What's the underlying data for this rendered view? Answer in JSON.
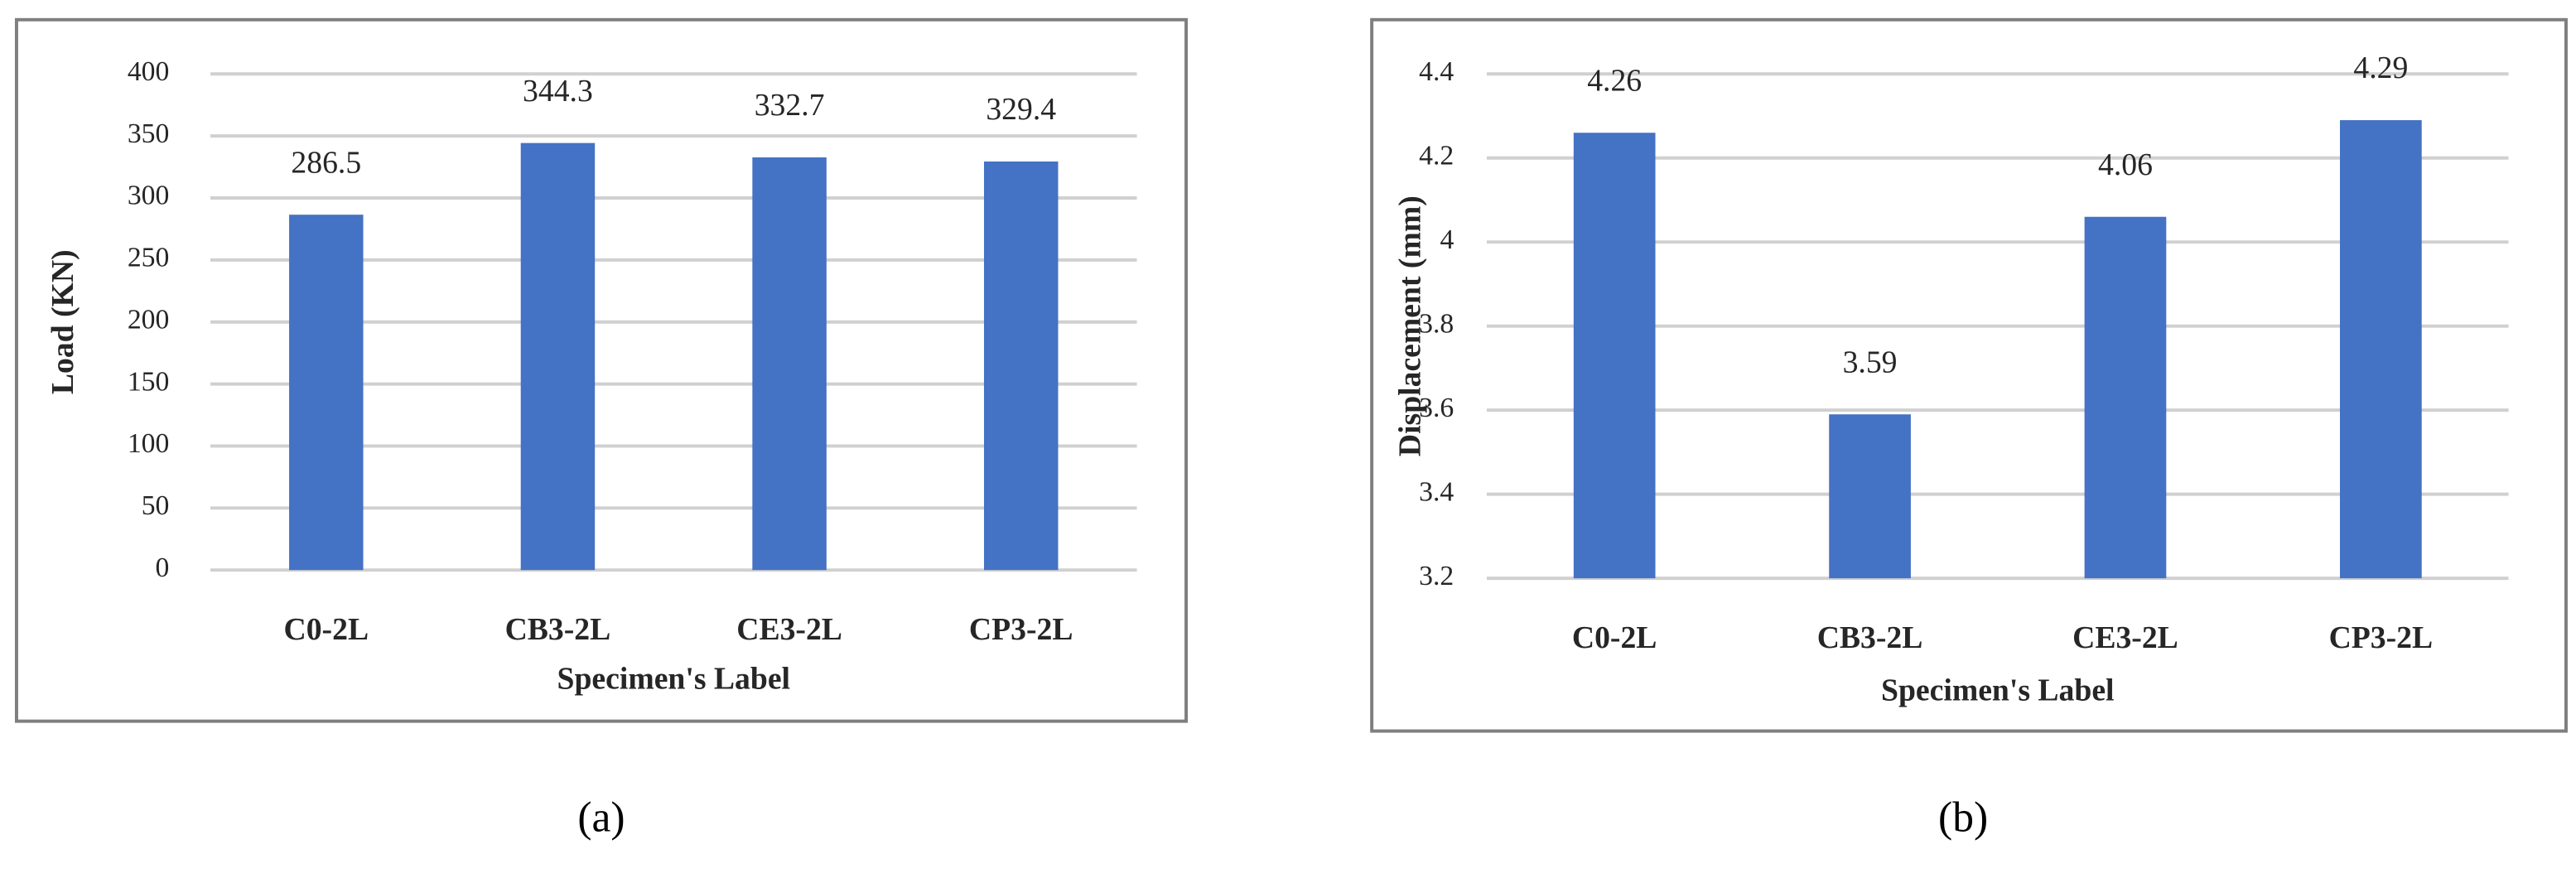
{
  "chart_data": [
    {
      "type": "bar",
      "caption": "(a)",
      "xlabel": "Specimen's Label",
      "ylabel": "Load (KN)",
      "categories": [
        "C0-2L",
        "CB3-2L",
        "CE3-2L",
        "CP3-2L"
      ],
      "values": [
        286.5,
        344.3,
        332.7,
        329.4
      ],
      "color": "#4472c4",
      "ylim": [
        0,
        400
      ],
      "yticks": [
        0,
        50,
        100,
        150,
        200,
        250,
        300,
        350,
        400
      ],
      "grid": true
    },
    {
      "type": "bar",
      "caption": "(b)",
      "xlabel": "Specimen's Label",
      "ylabel": "Displacement (mm)",
      "categories": [
        "C0-2L",
        "CB3-2L",
        "CE3-2L",
        "CP3-2L"
      ],
      "values": [
        4.26,
        3.59,
        4.06,
        4.29
      ],
      "color": "#4472c4",
      "ylim": [
        3.2,
        4.4
      ],
      "yticks": [
        3.2,
        3.4,
        3.6,
        3.8,
        4,
        4.2,
        4.4
      ],
      "grid": true
    }
  ]
}
